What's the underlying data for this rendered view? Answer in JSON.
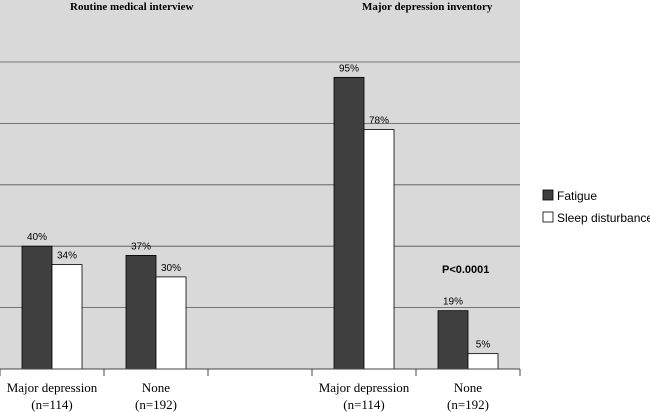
{
  "chart_data": {
    "type": "bar",
    "title": "",
    "panels": [
      "Routine medical interview",
      "Major depression inventory"
    ],
    "categories": [
      {
        "line1": "Major depression",
        "line2": "(n=114)"
      },
      {
        "line1": "None",
        "line2": "(n=192)"
      },
      {
        "line1": "Major depression",
        "line2": "(n=114)"
      },
      {
        "line1": "None",
        "line2": "(n=192)"
      }
    ],
    "series": [
      {
        "name": "Fatigue",
        "color": "#404040",
        "values": [
          40,
          37,
          95,
          19
        ],
        "labels": [
          "40%",
          "37%",
          "95%",
          "19%"
        ]
      },
      {
        "name": "Sleep disturbance",
        "color": "#ffffff",
        "values": [
          34,
          30,
          78,
          5
        ],
        "labels": [
          "34%",
          "30%",
          "78%",
          "5%"
        ]
      }
    ],
    "ylim": [
      0,
      100
    ],
    "grid": true,
    "legend": "right",
    "annotation": "P<0.0001",
    "background": "#d9d9d9"
  }
}
